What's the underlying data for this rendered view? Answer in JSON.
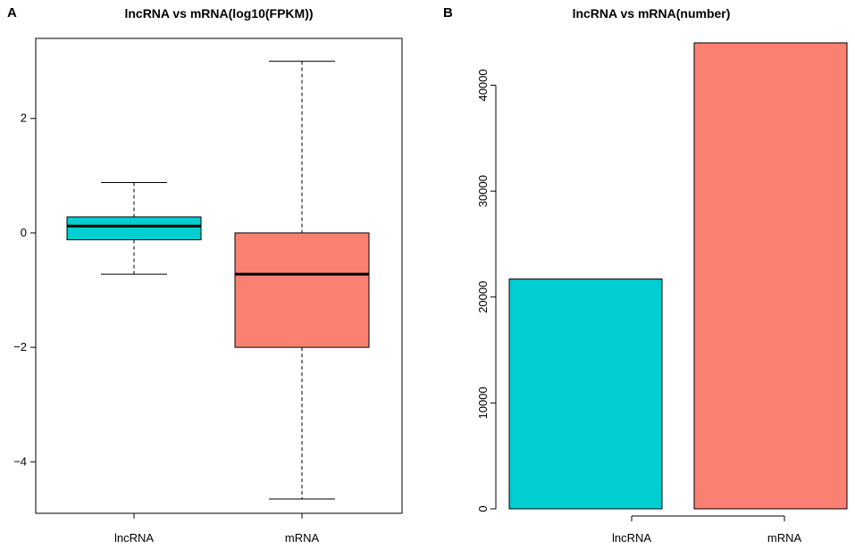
{
  "colors": {
    "lncrna": "#00CED1",
    "mrna": "#FA8072",
    "ink": "#000000",
    "background": "#FFFFFF"
  },
  "chart_data": [
    {
      "panel": "A",
      "type": "box",
      "title": "lncRNA vs mRNA(log10(FPKM))",
      "xlabel": "",
      "ylabel": "",
      "ylim": [
        -4.9,
        3.4
      ],
      "yticks": [
        -4,
        -2,
        0,
        2
      ],
      "ytick_labels": [
        "−4",
        "−2",
        "0",
        "2"
      ],
      "categories": [
        "lncRNA",
        "mRNA"
      ],
      "boxes": [
        {
          "name": "lncRNA",
          "whisker_low": -0.72,
          "q1": -0.12,
          "median": 0.12,
          "q3": 0.28,
          "whisker_high": 0.88
        },
        {
          "name": "mRNA",
          "whisker_low": -4.65,
          "q1": -2.0,
          "median": -0.72,
          "q3": 0.0,
          "whisker_high": 3.0
        }
      ]
    },
    {
      "panel": "B",
      "type": "bar",
      "title": "lncRNA vs mRNA(number)",
      "xlabel": "",
      "ylabel": "",
      "ylim": [
        0,
        44000
      ],
      "yticks": [
        0,
        10000,
        20000,
        30000,
        40000
      ],
      "ytick_labels": [
        "0",
        "10000",
        "20000",
        "30000",
        "40000"
      ],
      "categories": [
        "lncRNA",
        "mRNA"
      ],
      "values": [
        21700,
        44000
      ]
    }
  ]
}
